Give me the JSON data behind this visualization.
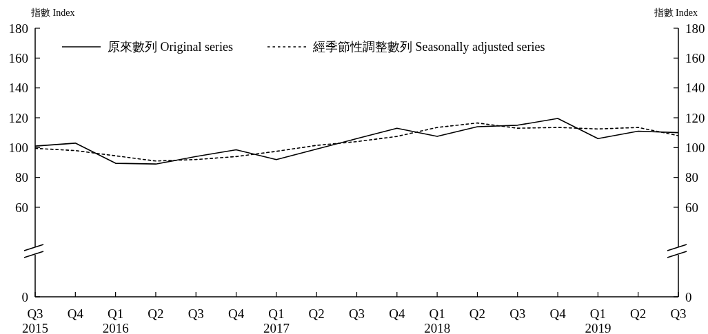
{
  "chart_data": {
    "type": "line",
    "ylabel": "指數 Index",
    "y2label": "指數 Index",
    "categories": [
      "Q3\n2015",
      "Q4",
      "Q1\n2016",
      "Q2",
      "Q3",
      "Q4",
      "Q1\n2017",
      "Q2",
      "Q3",
      "Q4",
      "Q1\n2018",
      "Q2",
      "Q3",
      "Q4",
      "Q1\n2019",
      "Q2",
      "Q3"
    ],
    "series": [
      {
        "name": "原來數列 Original series",
        "color": "#000000",
        "line_style": "solid",
        "values": [
          101,
          103,
          89.5,
          89,
          94,
          98.5,
          92,
          99,
          106,
          113,
          107.5,
          114,
          115,
          119.5,
          106,
          111,
          110
        ]
      },
      {
        "name": "經季節性調整數列 Seasonally adjusted series",
        "color": "#000000",
        "line_style": "dashed",
        "values": [
          99.5,
          98,
          94.5,
          91,
          92,
          94,
          97.5,
          101.5,
          104,
          107.5,
          113.5,
          116.5,
          113,
          113.5,
          112.5,
          113.5,
          108
        ]
      }
    ],
    "ylim": [
      0,
      180
    ],
    "yticks": [
      0,
      60,
      80,
      100,
      120,
      140,
      160,
      180
    ],
    "y2lim": [
      0,
      180
    ],
    "y2ticks": [
      0,
      60,
      80,
      100,
      120,
      140,
      160,
      180
    ],
    "legend": "top left",
    "marker": "none"
  }
}
